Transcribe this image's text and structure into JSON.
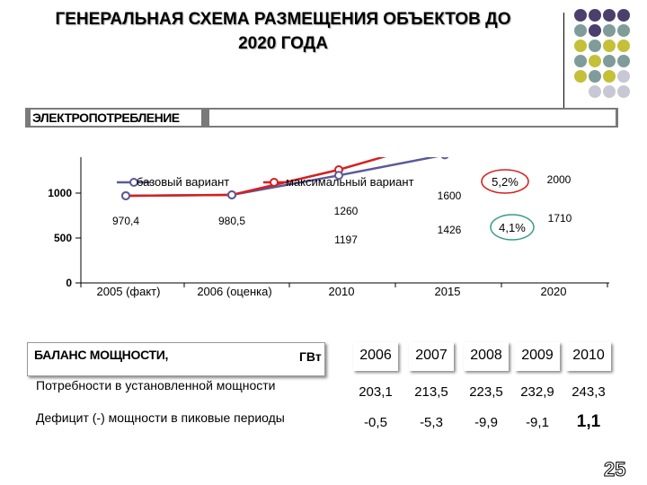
{
  "header": {
    "title_line1": "ГЕНЕРАЛЬНАЯ СХЕМА РАЗМЕЩЕНИЯ ОБЪЕКТОВ ДО",
    "title_line2": "2020 ГОДА"
  },
  "section": {
    "label": "ЭЛЕКТРОПОТРЕБЛЕНИЕ"
  },
  "colors": {
    "base": "#5a5a9a",
    "max": "#d42020",
    "dots_purple": "#4b3f6e",
    "dots_teal": "#7f9c9a",
    "dots_yellow": "#c4c038",
    "dots_gray": "#c8c8d4"
  },
  "chart_data": {
    "type": "line",
    "categories": [
      "2005 (факт)",
      "2006 (оценка)",
      "2010",
      "2015",
      "2020"
    ],
    "ylim": [
      0,
      2500
    ],
    "yticks": [
      "0",
      "500",
      "1000",
      "1500",
      "2000",
      "2500"
    ],
    "series": [
      {
        "name": "базовый вариант",
        "values": [
          970.4,
          980.5,
          1197,
          1426,
          1710
        ],
        "labels": [
          "970,4",
          "980,5",
          "1197",
          "1426",
          "1710"
        ]
      },
      {
        "name": "максимальный вариант",
        "values": [
          970.4,
          980.5,
          1260,
          1600,
          2000
        ],
        "labels": [
          "",
          "",
          "1260",
          "1600",
          "2000"
        ]
      }
    ],
    "annotations": [
      "5,2%",
      "4,1%"
    ]
  },
  "table": {
    "header_label": "БАЛАНС МОЩНОСТИ,",
    "unit": "ГВт",
    "years": [
      "2006",
      "2007",
      "2008",
      "2009",
      "2010"
    ],
    "rows": [
      {
        "label": "Потребности в установленной мощности",
        "values": [
          "203,1",
          "213,5",
          "223,5",
          "232,9",
          "243,3"
        ]
      },
      {
        "label": "Дефицит (-) мощности в пиковые периоды",
        "values": [
          "-0,5",
          "-5,3",
          "-9,9",
          "-9,1",
          "1,1"
        ]
      }
    ]
  },
  "page_number": "25"
}
